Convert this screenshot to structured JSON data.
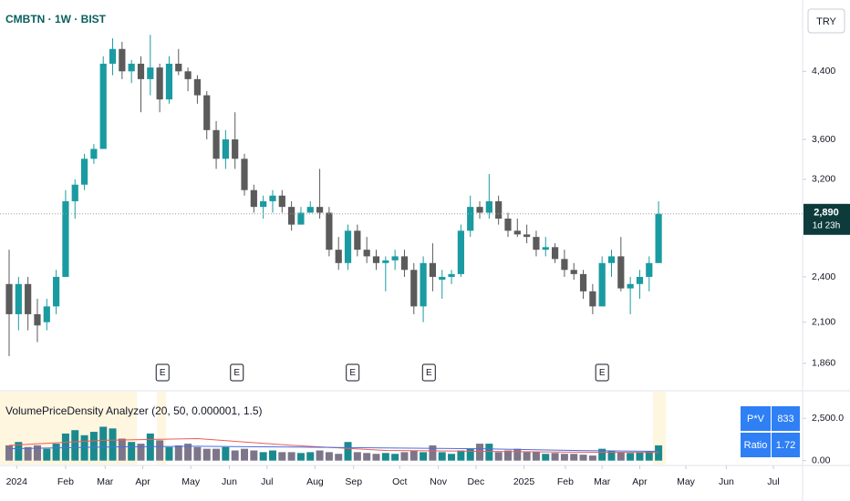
{
  "chart_data": [
    {
      "type": "candlestick",
      "title": "CMBTN · 1W · BIST",
      "currency": "TRY",
      "up_color": "#1a9ba1",
      "down_color": "#5b5b5b",
      "log_scale": true,
      "open": [
        2350,
        2150,
        2350,
        2150,
        2100,
        2200,
        2400,
        3000,
        3150,
        3400,
        3500,
        4500,
        4700,
        4400,
        4500,
        4300,
        4450,
        4050,
        4500,
        4400,
        4300,
        4100,
        3700,
        3400,
        3600,
        3400,
        3100,
        2950,
        3000,
        3050,
        2950,
        2800,
        2900,
        2950,
        2900,
        2600,
        2500,
        2750,
        2600,
        2550,
        2500,
        2520,
        2550,
        2450,
        2200,
        2500,
        2380,
        2400,
        2420,
        2750,
        2950,
        2900,
        3000,
        2850,
        2750,
        2720,
        2700,
        2600,
        2620,
        2530,
        2450,
        2420,
        2300,
        2200,
        2500,
        2550,
        2320,
        2350,
        2400,
        2500
      ],
      "high": [
        2600,
        2400,
        2400,
        2250,
        2250,
        2450,
        3100,
        3200,
        3450,
        3550,
        4600,
        4850,
        4800,
        4550,
        4600,
        4900,
        4500,
        4600,
        4700,
        4450,
        4350,
        4150,
        3800,
        3700,
        3900,
        3450,
        3150,
        3050,
        3100,
        3100,
        3000,
        2950,
        3000,
        3300,
        2950,
        2700,
        2800,
        2800,
        2700,
        2600,
        2550,
        2600,
        2600,
        2500,
        2550,
        2650,
        2450,
        2450,
        2800,
        3050,
        3000,
        3250,
        3050,
        2900,
        2850,
        2800,
        2750,
        2700,
        2650,
        2600,
        2500,
        2450,
        2350,
        2550,
        2600,
        2700,
        2400,
        2450,
        2550,
        3000
      ],
      "low": [
        1900,
        2050,
        2050,
        1980,
        2050,
        2150,
        2400,
        2850,
        3100,
        3350,
        3500,
        4350,
        4300,
        4250,
        3900,
        4100,
        3900,
        4000,
        4350,
        4150,
        4000,
        3600,
        3300,
        3300,
        3300,
        3050,
        2900,
        2850,
        2900,
        2900,
        2750,
        2800,
        2900,
        2850,
        2550,
        2450,
        2450,
        2550,
        2500,
        2450,
        2300,
        2450,
        2400,
        2150,
        2100,
        2300,
        2250,
        2350,
        2400,
        2700,
        2850,
        2850,
        2800,
        2700,
        2700,
        2650,
        2550,
        2550,
        2500,
        2400,
        2380,
        2250,
        2150,
        2200,
        2400,
        2300,
        2150,
        2250,
        2300,
        2500
      ],
      "close": [
        2150,
        2350,
        2150,
        2080,
        2200,
        2400,
        3000,
        3150,
        3400,
        3500,
        4500,
        4700,
        4400,
        4500,
        4300,
        4450,
        4050,
        4500,
        4400,
        4300,
        4100,
        3700,
        3400,
        3600,
        3400,
        3100,
        2950,
        3000,
        3050,
        2950,
        2800,
        2900,
        2950,
        2900,
        2600,
        2500,
        2750,
        2600,
        2550,
        2500,
        2520,
        2550,
        2450,
        2200,
        2500,
        2400,
        2400,
        2420,
        2750,
        2950,
        2900,
        3000,
        2850,
        2750,
        2720,
        2700,
        2600,
        2620,
        2530,
        2450,
        2420,
        2300,
        2200,
        2500,
        2550,
        2320,
        2350,
        2400,
        2500,
        2890
      ],
      "last_price": 2890,
      "last_label": "2,890",
      "countdown": "1d 23h",
      "ylim": [
        1720,
        5430
      ],
      "yticks": [
        {
          "value": 1860,
          "label": "1,860"
        },
        {
          "value": 2100,
          "label": "2,100"
        },
        {
          "value": 2400,
          "label": "2,400"
        },
        {
          "value": 3200,
          "label": "3,200"
        },
        {
          "value": 3600,
          "label": "3,600"
        },
        {
          "value": 4400,
          "label": "4,400"
        }
      ],
      "xlim": [
        -0.97,
        84.3
      ],
      "xticks": [
        {
          "value": 0.8,
          "label": "2024"
        },
        {
          "value": 6,
          "label": "Feb"
        },
        {
          "value": 10.2,
          "label": "Mar"
        },
        {
          "value": 14.2,
          "label": "Apr"
        },
        {
          "value": 19.3,
          "label": "May"
        },
        {
          "value": 23.4,
          "label": "Jun"
        },
        {
          "value": 27.4,
          "label": "Jul"
        },
        {
          "value": 32.5,
          "label": "Aug"
        },
        {
          "value": 36.6,
          "label": "Sep"
        },
        {
          "value": 41.5,
          "label": "Oct"
        },
        {
          "value": 45.6,
          "label": "Nov"
        },
        {
          "value": 49.6,
          "label": "Dec"
        },
        {
          "value": 54.7,
          "label": "2025"
        },
        {
          "value": 59.1,
          "label": "Feb"
        },
        {
          "value": 63,
          "label": "Mar"
        },
        {
          "value": 67,
          "label": "Apr"
        },
        {
          "value": 71.9,
          "label": "May"
        },
        {
          "value": 76.2,
          "label": "Jun"
        },
        {
          "value": 81.2,
          "label": "Jul"
        }
      ],
      "events": [
        {
          "x": 16.3,
          "label": "E"
        },
        {
          "x": 24.2,
          "label": "E"
        },
        {
          "x": 36.5,
          "label": "E"
        },
        {
          "x": 44.6,
          "label": "E"
        },
        {
          "x": 63,
          "label": "E"
        }
      ]
    },
    {
      "type": "bar",
      "title": "VolumePriceDensity Analyzer (20, 50, 0.000001, 1.5)",
      "up_color": "#1b8a8f",
      "down_color": "#7d7589",
      "values": [
        900,
        1100,
        800,
        900,
        700,
        1000,
        1600,
        1800,
        1500,
        1700,
        2000,
        1900,
        1300,
        1100,
        1000,
        1600,
        1200,
        800,
        900,
        1000,
        800,
        700,
        700,
        800,
        600,
        700,
        600,
        500,
        600,
        500,
        500,
        450,
        500,
        600,
        500,
        400,
        1100,
        500,
        450,
        400,
        450,
        400,
        500,
        600,
        500,
        900,
        500,
        400,
        600,
        700,
        1000,
        1000,
        500,
        600,
        700,
        500,
        500,
        400,
        450,
        400,
        400,
        350,
        300,
        700,
        600,
        500,
        450,
        500,
        550,
        900
      ],
      "lines": [
        {
          "color": "#f05a5a",
          "x": [
            0,
            10,
            20,
            30,
            40,
            50,
            60,
            69
          ],
          "values": [
            900,
            1200,
            1300,
            900,
            600,
            550,
            500,
            480
          ]
        },
        {
          "color": "#4a6ee0",
          "x": [
            0,
            10,
            20,
            30,
            40,
            50,
            60,
            69
          ],
          "values": [
            700,
            800,
            850,
            800,
            750,
            700,
            600,
            550
          ]
        }
      ],
      "ylim": [
        -233,
        4070
      ],
      "yticks": [
        {
          "value": 0,
          "label": "0.00"
        },
        {
          "value": 2500,
          "label": "2,500.0"
        }
      ],
      "table": {
        "rows": [
          [
            "P*V",
            833
          ],
          [
            "Ratio",
            1.72
          ]
        ]
      }
    }
  ]
}
